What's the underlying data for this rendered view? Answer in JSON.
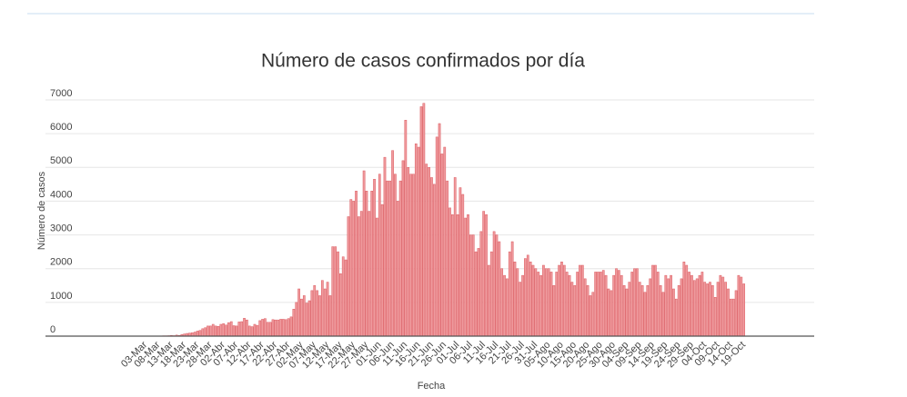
{
  "chart_data": {
    "type": "bar",
    "title": "Número de casos confirmados por día",
    "x_label": "Fecha",
    "y_label": "Número de casos",
    "color": "#ef9a9d",
    "edge_color": "#dc5a60",
    "grid": true,
    "ylim": [
      0,
      7000
    ],
    "yticks": [
      0,
      1000,
      2000,
      3000,
      4000,
      5000,
      6000,
      7000
    ],
    "categories": [
      "03-Mar",
      null,
      null,
      null,
      null,
      "08-Mar",
      null,
      null,
      null,
      null,
      "13-Mar",
      null,
      null,
      null,
      null,
      "18-Mar",
      null,
      null,
      null,
      null,
      "23-Mar",
      null,
      null,
      null,
      null,
      "28-Mar",
      null,
      null,
      null,
      null,
      "02-Abr",
      null,
      null,
      null,
      null,
      "07-Abr",
      null,
      null,
      null,
      null,
      "12-Abr",
      null,
      null,
      null,
      null,
      "17-Abr",
      null,
      null,
      null,
      null,
      "22-Abr",
      null,
      null,
      null,
      null,
      "27-Abr",
      null,
      null,
      null,
      null,
      "02-May",
      null,
      null,
      null,
      null,
      "07-May",
      null,
      null,
      null,
      null,
      "12-May",
      null,
      null,
      null,
      null,
      "17-May",
      null,
      null,
      null,
      null,
      "22-May",
      null,
      null,
      null,
      null,
      "27-May",
      null,
      null,
      null,
      null,
      "01-Jun",
      null,
      null,
      null,
      null,
      "06-Jun",
      null,
      null,
      null,
      null,
      "11-Jun",
      null,
      null,
      null,
      null,
      "16-Jun",
      null,
      null,
      null,
      null,
      "21-Jun",
      null,
      null,
      null,
      null,
      "26-Jun",
      null,
      null,
      null,
      null,
      "01-Jul",
      null,
      null,
      null,
      null,
      "06-Jul",
      null,
      null,
      null,
      null,
      "11-Jul",
      null,
      null,
      null,
      null,
      "16-Jul",
      null,
      null,
      null,
      null,
      "21-Jul",
      null,
      null,
      null,
      null,
      "26-Jul",
      null,
      null,
      null,
      null,
      "31-Jul",
      null,
      null,
      null,
      null,
      "05-Ago",
      null,
      null,
      null,
      null,
      "10-Ago",
      null,
      null,
      null,
      null,
      "15-Ago",
      null,
      null,
      null,
      null,
      "20-Ago",
      null,
      null,
      null,
      null,
      "25-Ago",
      null,
      null,
      null,
      null,
      "30-Ago",
      null,
      null,
      null,
      null,
      "04-Sep",
      null,
      null,
      null,
      null,
      "09-Sep",
      null,
      null,
      null,
      null,
      "14-Sep",
      null,
      null,
      null,
      null,
      "19-Sep",
      null,
      null,
      null,
      null,
      "24-Sep",
      null,
      null,
      null,
      null,
      "29-Sep",
      null,
      null,
      null,
      null,
      "04-Oct",
      null,
      null,
      null,
      null,
      "09-Oct",
      null,
      null,
      null,
      null,
      "14-Oct",
      null,
      null,
      null,
      null,
      "19-Oct",
      null
    ],
    "values": [
      1,
      0,
      1,
      1,
      2,
      3,
      3,
      3,
      10,
      10,
      13,
      20,
      14,
      31,
      19,
      50,
      65,
      80,
      90,
      100,
      120,
      150,
      170,
      220,
      250,
      300,
      300,
      350,
      300,
      290,
      350,
      370,
      330,
      400,
      430,
      310,
      300,
      420,
      430,
      530,
      480,
      300,
      280,
      350,
      320,
      460,
      500,
      520,
      410,
      410,
      490,
      480,
      480,
      500,
      500,
      490,
      520,
      570,
      800,
      1000,
      1400,
      1100,
      1200,
      980,
      1050,
      1350,
      1500,
      1350,
      1200,
      1650,
      1400,
      1600,
      1200,
      2650,
      2650,
      2500,
      1850,
      2350,
      2260,
      3540,
      4050,
      4000,
      4300,
      3540,
      3700,
      4900,
      4300,
      3700,
      4300,
      4650,
      3500,
      4800,
      3900,
      5300,
      4600,
      4600,
      5500,
      4800,
      4000,
      4600,
      5200,
      6400,
      5000,
      4800,
      4800,
      5700,
      5600,
      6800,
      6900,
      5100,
      5000,
      4700,
      4500,
      5900,
      6300,
      5400,
      5600,
      4600,
      3800,
      3600,
      4700,
      3600,
      4400,
      4200,
      3500,
      3600,
      3000,
      3000,
      2500,
      2600,
      3100,
      3700,
      3600,
      2100,
      2500,
      3100,
      3000,
      2800,
      2000,
      1800,
      1700,
      2500,
      2800,
      2200,
      2000,
      1600,
      1800,
      2300,
      2400,
      2200,
      2100,
      2000,
      1900,
      1800,
      2100,
      2000,
      2000,
      1900,
      1500,
      1900,
      2100,
      2200,
      2100,
      1900,
      1800,
      1600,
      1500,
      1900,
      2100,
      2100,
      1700,
      1500,
      1200,
      1300,
      1900,
      1900,
      1900,
      1950,
      1800,
      1400,
      1350,
      1800,
      2000,
      1950,
      1800,
      1500,
      1400,
      1600,
      1900,
      2000,
      2000,
      1600,
      1500,
      1300,
      1500,
      1700,
      2100,
      2100,
      1900,
      1500,
      1300,
      1800,
      1700,
      1800,
      1400,
      1100,
      1500,
      1700,
      2200,
      2100,
      1900,
      1800,
      1650,
      1700,
      1800,
      1900,
      1600,
      1550,
      1600,
      1500,
      1150,
      1600,
      1800,
      1750,
      1600,
      1400,
      1100,
      1100,
      1350,
      1800,
      1750,
      1550
    ]
  }
}
